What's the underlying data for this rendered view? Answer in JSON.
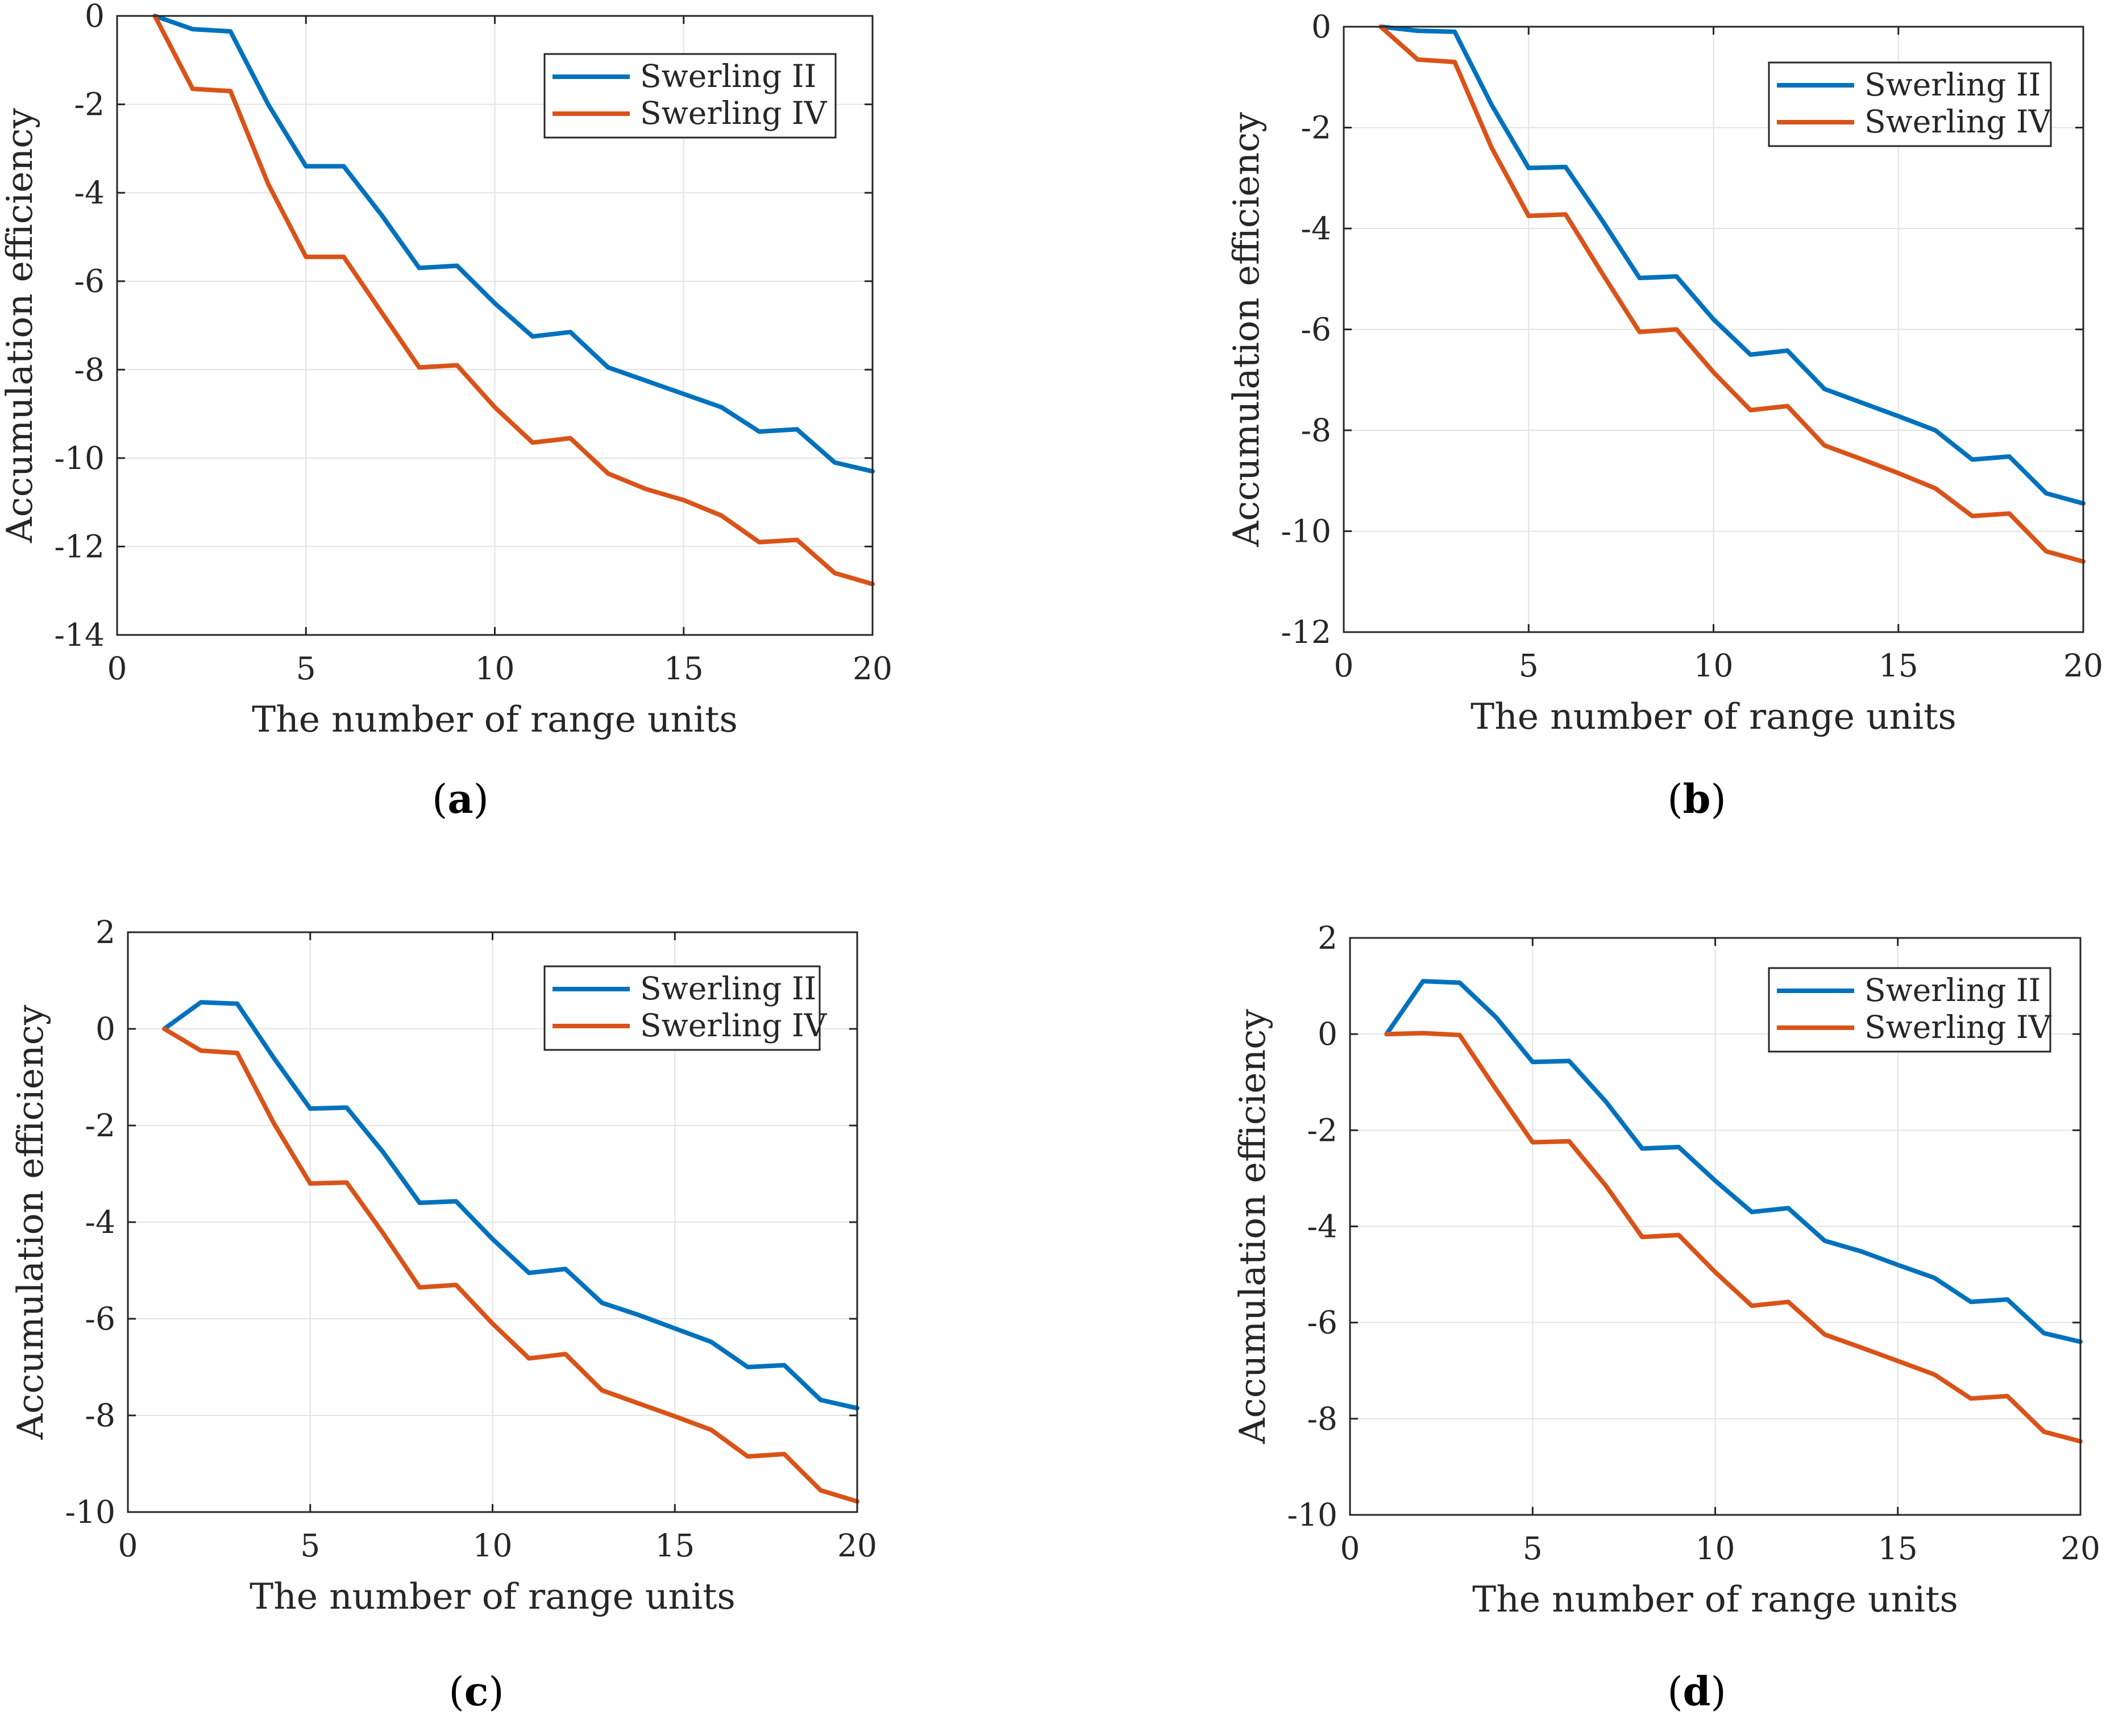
{
  "colors": {
    "series_1": "#0072BD",
    "series_2": "#D95319",
    "grid": "#e3e3e3",
    "axis": "#262626"
  },
  "chart_data": [
    {
      "type": "line",
      "caption": "a",
      "xlabel": "The number of range units",
      "ylabel": "Accumulation efficiency",
      "xlim": [
        0,
        20
      ],
      "ylim": [
        -14,
        0
      ],
      "xticks": [
        0,
        5,
        10,
        15,
        20
      ],
      "yticks": [
        -14,
        -12,
        -10,
        -8,
        -6,
        -4,
        -2,
        0
      ],
      "grid": true,
      "legend_position": "top-right",
      "x": [
        1,
        2,
        3,
        4,
        5,
        6,
        7,
        8,
        9,
        10,
        11,
        12,
        13,
        14,
        15,
        16,
        17,
        18,
        19,
        20
      ],
      "series": [
        {
          "name": "Swerling II",
          "values": [
            0,
            -0.3,
            -0.35,
            -2.0,
            -3.4,
            -3.4,
            -4.5,
            -5.7,
            -5.65,
            -6.5,
            -7.25,
            -7.15,
            -7.95,
            -8.25,
            -8.55,
            -8.85,
            -9.4,
            -9.35,
            -10.1,
            -10.3
          ]
        },
        {
          "name": "Swerling IV",
          "values": [
            0,
            -1.65,
            -1.7,
            -3.8,
            -5.45,
            -5.45,
            -6.7,
            -7.95,
            -7.9,
            -8.85,
            -9.65,
            -9.55,
            -10.35,
            -10.7,
            -10.95,
            -11.3,
            -11.9,
            -11.85,
            -12.6,
            -12.85
          ]
        }
      ]
    },
    {
      "type": "line",
      "caption": "b",
      "xlabel": "The number of range units",
      "ylabel": "Accumulation efficiency",
      "xlim": [
        0,
        20
      ],
      "ylim": [
        -12,
        0
      ],
      "xticks": [
        0,
        5,
        10,
        15,
        20
      ],
      "yticks": [
        -12,
        -10,
        -8,
        -6,
        -4,
        -2,
        0
      ],
      "grid": true,
      "legend_position": "top-right",
      "x": [
        1,
        2,
        3,
        4,
        5,
        6,
        7,
        8,
        9,
        10,
        11,
        12,
        13,
        14,
        15,
        16,
        17,
        18,
        19,
        20
      ],
      "series": [
        {
          "name": "Swerling II",
          "values": [
            0,
            -0.08,
            -0.1,
            -1.55,
            -2.8,
            -2.78,
            -3.85,
            -4.98,
            -4.95,
            -5.8,
            -6.5,
            -6.42,
            -7.18,
            -7.45,
            -7.72,
            -8.0,
            -8.58,
            -8.52,
            -9.25,
            -9.45
          ]
        },
        {
          "name": "Swerling IV",
          "values": [
            0,
            -0.65,
            -0.7,
            -2.4,
            -3.75,
            -3.72,
            -4.9,
            -6.05,
            -6.0,
            -6.85,
            -7.6,
            -7.52,
            -8.3,
            -8.57,
            -8.85,
            -9.15,
            -9.7,
            -9.65,
            -10.4,
            -10.6
          ]
        }
      ]
    },
    {
      "type": "line",
      "caption": "c",
      "xlabel": "The number of range units",
      "ylabel": "Accumulation efficiency",
      "xlim": [
        0,
        20
      ],
      "ylim": [
        -10,
        2
      ],
      "xticks": [
        0,
        5,
        10,
        15,
        20
      ],
      "yticks": [
        -10,
        -8,
        -6,
        -4,
        -2,
        0,
        2
      ],
      "grid": true,
      "legend_position": "top-right",
      "x": [
        1,
        2,
        3,
        4,
        5,
        6,
        7,
        8,
        9,
        10,
        11,
        12,
        13,
        14,
        15,
        16,
        17,
        18,
        19,
        20
      ],
      "series": [
        {
          "name": "Swerling II",
          "values": [
            0,
            0.55,
            0.52,
            -0.6,
            -1.65,
            -1.63,
            -2.55,
            -3.6,
            -3.57,
            -4.35,
            -5.05,
            -4.97,
            -5.67,
            -5.92,
            -6.2,
            -6.48,
            -7.0,
            -6.96,
            -7.68,
            -7.85
          ]
        },
        {
          "name": "Swerling IV",
          "values": [
            0,
            -0.45,
            -0.5,
            -1.95,
            -3.2,
            -3.18,
            -4.23,
            -5.35,
            -5.3,
            -6.1,
            -6.82,
            -6.73,
            -7.48,
            -7.75,
            -8.02,
            -8.3,
            -8.85,
            -8.8,
            -9.55,
            -9.78
          ]
        }
      ]
    },
    {
      "type": "line",
      "caption": "d",
      "xlabel": "The number of range units",
      "ylabel": "Accumulation efficiency",
      "xlim": [
        0,
        20
      ],
      "ylim": [
        -10,
        2
      ],
      "xticks": [
        0,
        5,
        10,
        15,
        20
      ],
      "yticks": [
        -10,
        -8,
        -6,
        -4,
        -2,
        0,
        2
      ],
      "grid": true,
      "legend_position": "top-right",
      "x": [
        1,
        2,
        3,
        4,
        5,
        6,
        7,
        8,
        9,
        10,
        11,
        12,
        13,
        14,
        15,
        16,
        17,
        18,
        19,
        20
      ],
      "series": [
        {
          "name": "Swerling II",
          "values": [
            0,
            1.1,
            1.07,
            0.35,
            -0.58,
            -0.56,
            -1.4,
            -2.38,
            -2.35,
            -3.05,
            -3.7,
            -3.62,
            -4.3,
            -4.52,
            -4.8,
            -5.07,
            -5.57,
            -5.52,
            -6.22,
            -6.4
          ]
        },
        {
          "name": "Swerling IV",
          "values": [
            0,
            0.02,
            -0.02,
            -1.15,
            -2.25,
            -2.23,
            -3.15,
            -4.22,
            -4.18,
            -4.95,
            -5.65,
            -5.57,
            -6.25,
            -6.52,
            -6.8,
            -7.08,
            -7.58,
            -7.53,
            -8.27,
            -8.47
          ]
        }
      ]
    }
  ]
}
